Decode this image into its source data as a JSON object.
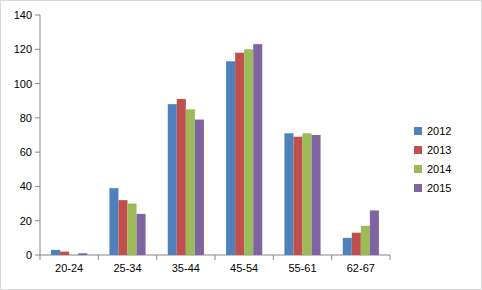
{
  "chart_data": {
    "type": "bar",
    "categories": [
      "20-24",
      "25-34",
      "35-44",
      "45-54",
      "55-61",
      "62-67"
    ],
    "series": [
      {
        "name": "2012",
        "color": "#4f81bd",
        "values": [
          3,
          39,
          88,
          113,
          71,
          10
        ]
      },
      {
        "name": "2013",
        "color": "#c0504d",
        "values": [
          2,
          32,
          91,
          118,
          69,
          13
        ]
      },
      {
        "name": "2014",
        "color": "#9bbb59",
        "values": [
          0,
          30,
          85,
          120,
          71,
          17
        ]
      },
      {
        "name": "2015",
        "color": "#8064a2",
        "values": [
          1,
          24,
          79,
          123,
          70,
          26
        ]
      }
    ],
    "ylim": [
      0,
      140
    ],
    "yticks": [
      0,
      20,
      40,
      60,
      80,
      100,
      120,
      140
    ],
    "grid": false,
    "legend": "right"
  }
}
